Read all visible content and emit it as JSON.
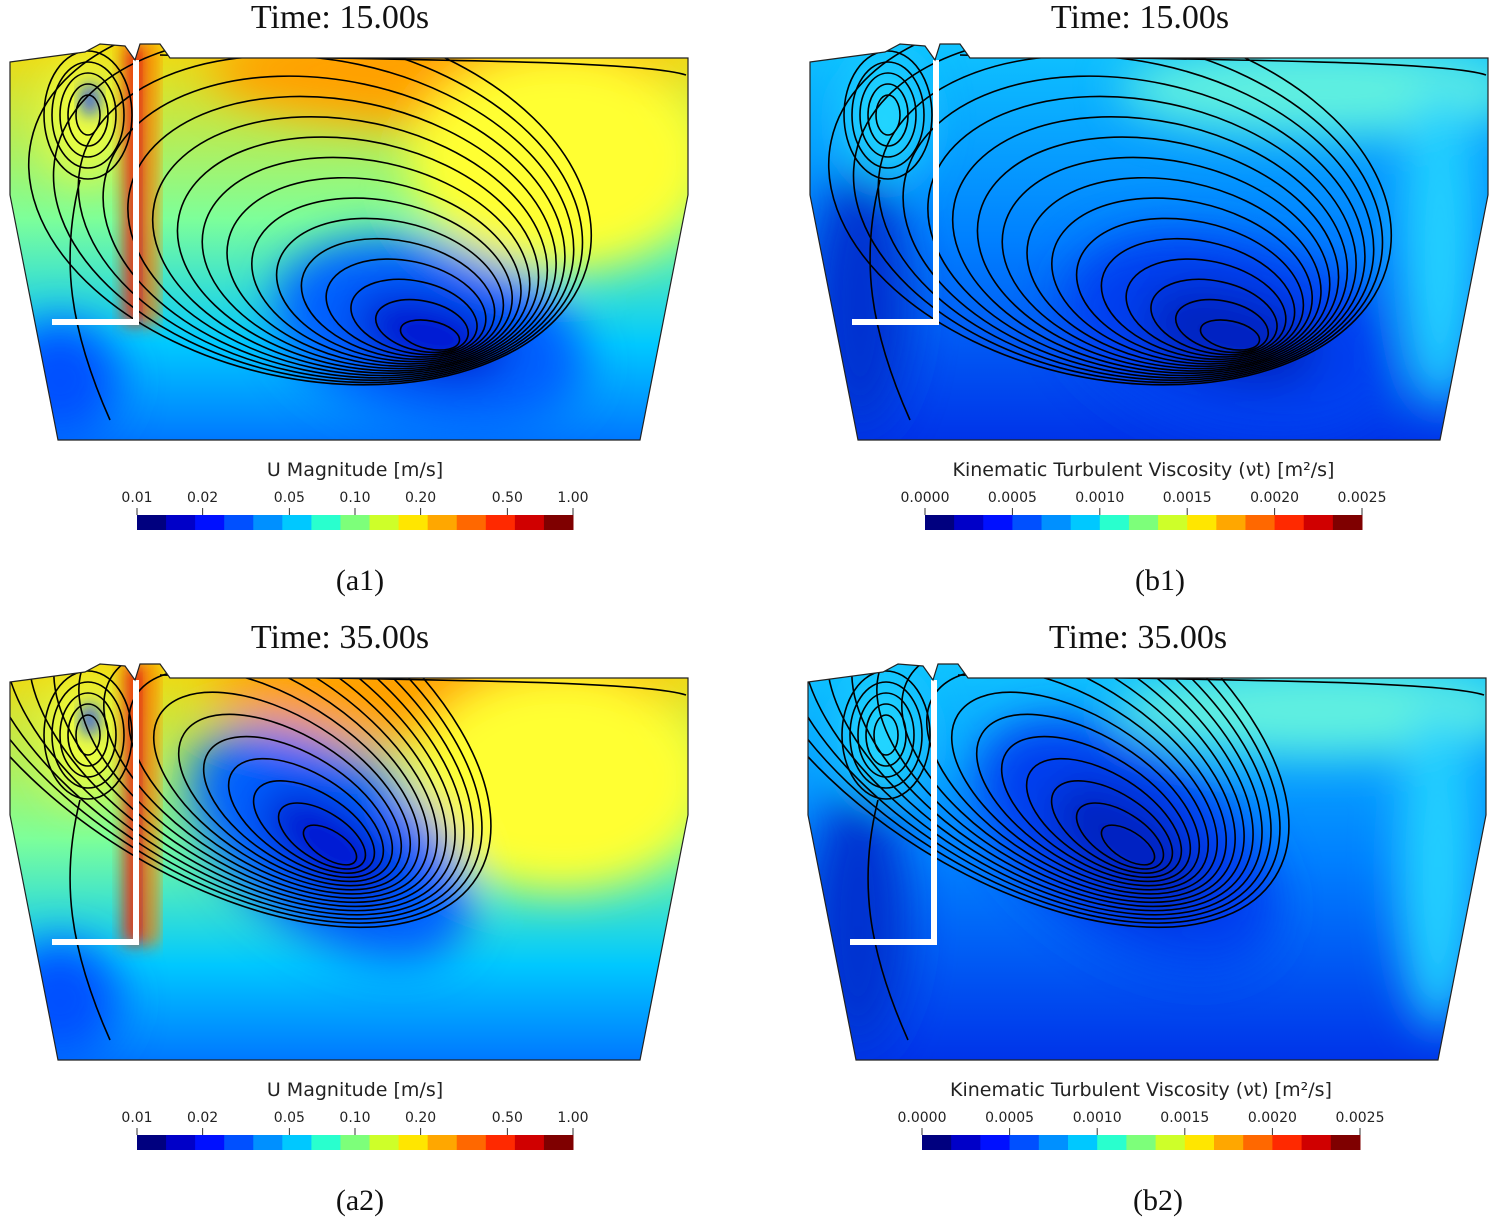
{
  "panels": [
    {
      "title": "Time: 15.00s",
      "colorbar": {
        "label": "U Magnitude [m/s]",
        "scale": "log",
        "lim": [
          0.01,
          1.0
        ],
        "ticks": [
          0.01,
          0.02,
          0.05,
          {
            "value": 0.1,
            "label": "0.10"
          },
          {
            "value": 0.2,
            "label": "0.20"
          },
          {
            "value": 0.5,
            "label": "0.50"
          },
          {
            "value": 1.0,
            "label": "1.00"
          }
        ]
      },
      "caption": "(a1)"
    },
    {
      "title": "Time: 15.00s",
      "colorbar": {
        "label": "Kinematic Turbulent Viscosity (νt) [m²/s]",
        "scale": "linear",
        "lim": [
          0,
          0.0025
        ],
        "ticks": [
          {
            "value": 0,
            "label": "0.0000"
          },
          {
            "value": 0.0005,
            "label": "0.0005"
          },
          {
            "value": 0.001,
            "label": "0.0010"
          },
          {
            "value": 0.0015,
            "label": "0.0015"
          },
          {
            "value": 0.002,
            "label": "0.0020"
          },
          {
            "value": 0.0025,
            "label": "0.0025"
          }
        ]
      },
      "caption": "(b1)"
    },
    {
      "title": "Time: 35.00s",
      "colorbar": {
        "label": "U Magnitude [m/s]",
        "scale": "log",
        "lim": [
          0.01,
          1.0
        ],
        "ticks": [
          0.01,
          0.02,
          0.05,
          {
            "value": 0.1,
            "label": "0.10"
          },
          {
            "value": 0.2,
            "label": "0.20"
          },
          {
            "value": 0.5,
            "label": "0.50"
          },
          {
            "value": 1.0,
            "label": "1.00"
          }
        ]
      },
      "caption": "(a2)"
    },
    {
      "title": "Time: 35.00s",
      "colorbar": {
        "label": "Kinematic Turbulent Viscosity (νt) [m²/s]",
        "scale": "linear",
        "lim": [
          0,
          0.0025
        ],
        "ticks": [
          {
            "value": 0,
            "label": "0.0000"
          },
          {
            "value": 0.0005,
            "label": "0.0005"
          },
          {
            "value": 0.001,
            "label": "0.0010"
          },
          {
            "value": 0.0015,
            "label": "0.0015"
          },
          {
            "value": 0.002,
            "label": "0.0020"
          },
          {
            "value": 0.0025,
            "label": "0.0025"
          }
        ]
      },
      "caption": "(b2)"
    }
  ],
  "colormap": [
    "#00007f",
    "#0000c8",
    "#0010ff",
    "#0050ff",
    "#0090ff",
    "#00c8ff",
    "#29ffce",
    "#7dff7a",
    "#ceff29",
    "#ffe600",
    "#ffa700",
    "#ff6800",
    "#ff2900",
    "#d00000",
    "#7f0000"
  ]
}
